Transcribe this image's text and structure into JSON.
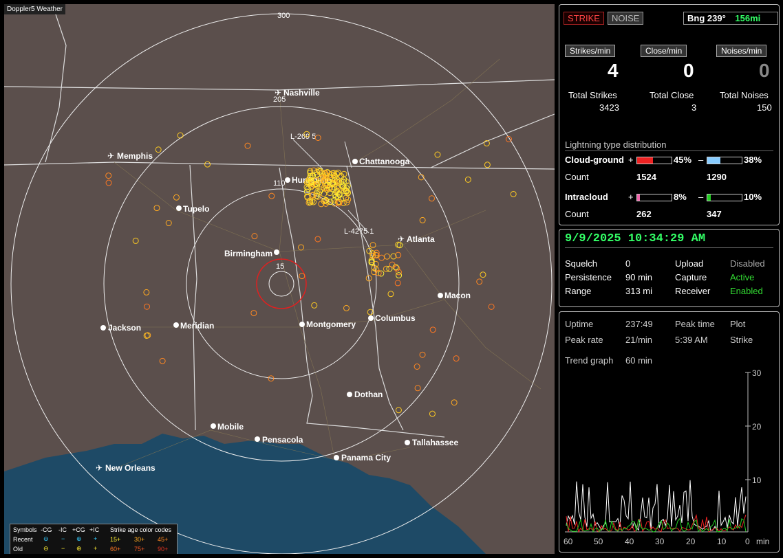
{
  "window_title": "Doppler5 Weather",
  "header": {
    "strike_btn": "STRIKE",
    "noise_btn": "NOISE",
    "bearing": "Bng 239°",
    "distance": "156mi"
  },
  "rates": {
    "strikes_label": "Strikes/min",
    "close_label": "Close/min",
    "noises_label": "Noises/min",
    "strikes": "4",
    "close": "0",
    "noises": "0"
  },
  "totals": {
    "strikes_label": "Total Strikes",
    "close_label": "Total Close",
    "noises_label": "Total Noises",
    "strikes": "3423",
    "close": "3",
    "noises": "150"
  },
  "distribution": {
    "title": "Lightning type distribution",
    "cg_label": "Cloud-ground",
    "ic_label": "Intracloud",
    "count_label": "Count",
    "plus": "+",
    "minus": "–",
    "cg_pos_pct": "45%",
    "cg_neg_pct": "38%",
    "cg_pos_count": "1524",
    "cg_neg_count": "1290",
    "ic_pos_pct": "8%",
    "ic_neg_pct": "10%",
    "ic_pos_count": "262",
    "ic_neg_count": "347",
    "cg_pos_fill": 0.45,
    "cg_neg_fill": 0.38,
    "ic_pos_fill": 0.08,
    "ic_neg_fill": 0.1
  },
  "status": {
    "datetime": "9/9/2025 10:34:29 AM",
    "squelch_label": "Squelch",
    "squelch": "0",
    "persistence_label": "Persistence",
    "persistence": "90 min",
    "range_label": "Range",
    "range": "313 mi",
    "upload_label": "Upload",
    "upload": "Disabled",
    "capture_label": "Capture",
    "capture": "Active",
    "receiver_label": "Receiver",
    "receiver": "Enabled"
  },
  "trend": {
    "uptime_label": "Uptime",
    "uptime": "237:49",
    "peak_time_label": "Peak time",
    "peak_time": "5:39 AM",
    "plot_label": "Plot",
    "plot": "Strike",
    "peak_rate_label": "Peak rate",
    "peak_rate": "21/min",
    "graph_label": "Trend graph",
    "graph_span": "60 min",
    "y_ticks": [
      "30",
      "20",
      "10"
    ],
    "x_ticks": [
      "60",
      "50",
      "40",
      "30",
      "20",
      "10",
      "0"
    ],
    "x_unit": "min"
  },
  "map": {
    "range_labels": [
      "300",
      "205",
      "110",
      "15"
    ],
    "track_labels": [
      "L-269 5",
      "L-4275 1"
    ],
    "cities": [
      "Nashville",
      "Memphis",
      "Chattanooga",
      "Huntsville",
      "Tupelo",
      "Atlanta",
      "Birmingham",
      "Macon",
      "Columbus",
      "Jackson",
      "Meridian",
      "Montgomery",
      "Dothan",
      "Mobile",
      "Pensacola",
      "Tallahassee",
      "Panama City",
      "New Orleans"
    ]
  },
  "legend": {
    "symbols_label": "Symbols",
    "neg_cg": "-CG",
    "neg_ic": "-IC",
    "pos_cg": "+CG",
    "pos_ic": "+IC",
    "age_label": "Strike age color codes",
    "recent_label": "Recent",
    "old_label": "Old",
    "age_15": "15+",
    "age_30": "30+",
    "age_45": "45+",
    "age_60": "60+",
    "age_75": "75+",
    "age_90": "90+"
  },
  "colors": {
    "map_bg": "#5b4f4c",
    "water": "#1e4a66",
    "strike_yellow": "#ffee33",
    "strike_orange": "#ff9922",
    "active_green": "#33dd33",
    "datetime_green": "#33ff66"
  }
}
